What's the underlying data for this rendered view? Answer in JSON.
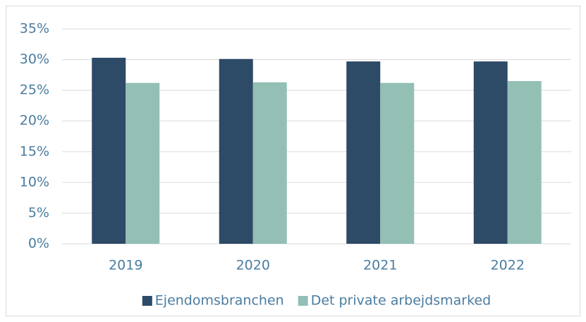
{
  "chart_data": {
    "type": "bar",
    "categories": [
      "2019",
      "2020",
      "2021",
      "2022"
    ],
    "series": [
      {
        "name": "Ejendomsbranchen",
        "color": "#2d4a66",
        "values": [
          30.3,
          30.1,
          29.7,
          29.7
        ]
      },
      {
        "name": "Det private arbejdsmarked",
        "color": "#93bfb5",
        "values": [
          26.2,
          26.3,
          26.2,
          26.5
        ]
      }
    ],
    "ylim": [
      0,
      35
    ],
    "yticks": [
      {
        "value": 0,
        "label": "0%"
      },
      {
        "value": 5,
        "label": "5%"
      },
      {
        "value": 10,
        "label": "10%"
      },
      {
        "value": 15,
        "label": "15%"
      },
      {
        "value": 20,
        "label": "20%"
      },
      {
        "value": 25,
        "label": "25%"
      },
      {
        "value": 30,
        "label": "30%"
      },
      {
        "value": 35,
        "label": "35%"
      }
    ],
    "grid": true,
    "legend": "bottom"
  }
}
